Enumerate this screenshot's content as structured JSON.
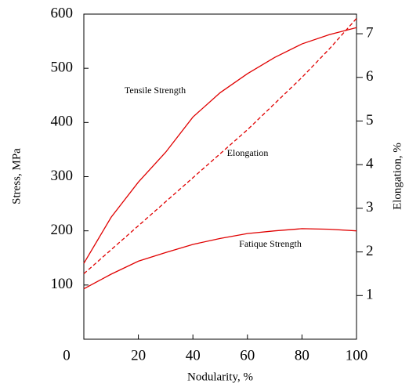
{
  "chart_data": {
    "type": "line",
    "x_label": "Nodularity, %",
    "y_label": "Stress, MPa",
    "y2_label": "Elongation, %",
    "x": [
      0,
      10,
      20,
      30,
      40,
      50,
      60,
      70,
      80,
      90,
      100
    ],
    "xlim": [
      0,
      100
    ],
    "xticks": [
      0,
      20,
      40,
      60,
      80,
      100
    ],
    "ylim": [
      0,
      600
    ],
    "yticks": [
      100,
      200,
      300,
      400,
      500,
      600
    ],
    "y2lim": [
      0,
      7.45
    ],
    "y2ticks": [
      1,
      2,
      3,
      4,
      5,
      6,
      7
    ],
    "grid": false,
    "series": [
      {
        "name": "Tensile Strength",
        "color": "#e00000",
        "dash": false,
        "values": [
          140,
          225,
          290,
          345,
          410,
          455,
          490,
          520,
          545,
          562,
          575
        ]
      },
      {
        "name": "Elongation",
        "color": "#e00000",
        "dash": true,
        "axis": "y2",
        "values": [
          1.5,
          2.05,
          2.6,
          3.15,
          3.7,
          4.25,
          4.8,
          5.4,
          6.0,
          6.65,
          7.35
        ]
      },
      {
        "name": "Fatique Strength",
        "color": "#e00000",
        "dash": false,
        "values": [
          93,
          120,
          144,
          160,
          175,
          186,
          195,
          200,
          204,
          203,
          200
        ]
      }
    ]
  }
}
